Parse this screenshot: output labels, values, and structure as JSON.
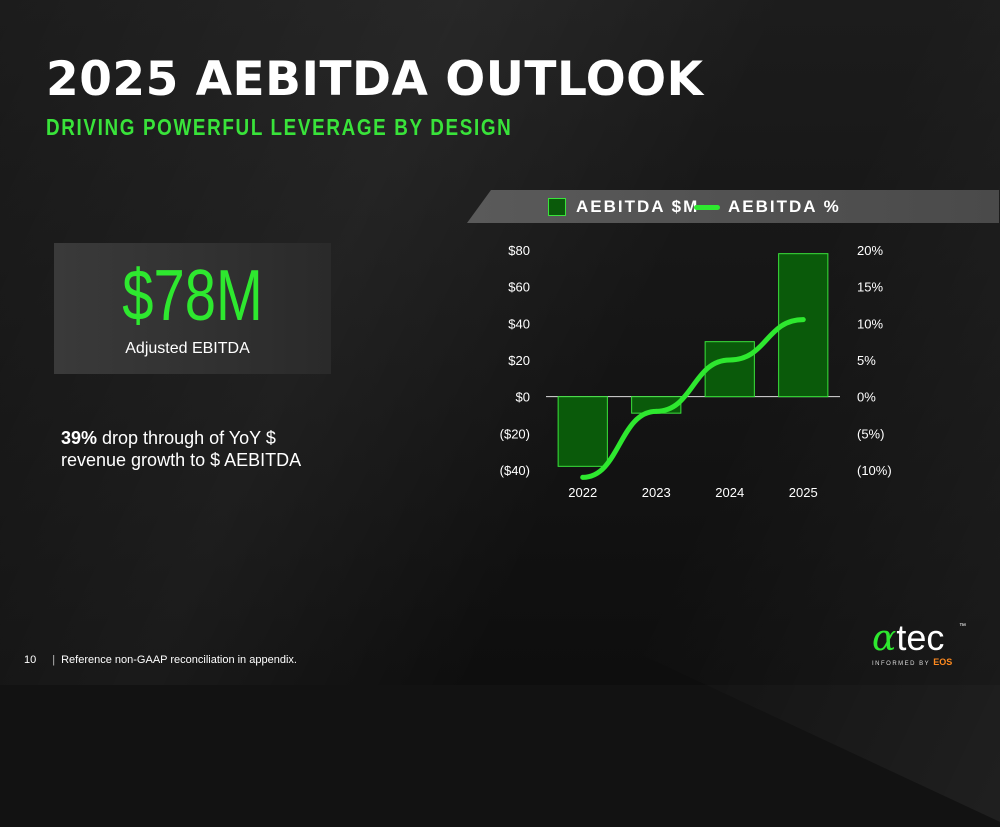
{
  "header": {
    "title": "2025 AEBITDA OUTLOOK",
    "subtitle": "DRIVING POWERFUL LEVERAGE BY DESIGN"
  },
  "kpi": {
    "value": "$78M",
    "label": "Adjusted EBITDA"
  },
  "note": {
    "bold": "39%",
    "text": " drop through of YoY $ revenue growth to $ AEBITDA"
  },
  "legend": {
    "bar_label": "AEBITDA $M",
    "line_label": "AEBITDA %"
  },
  "colors": {
    "accent": "#2ee82f",
    "bar_fill": "#0a5a0a",
    "bar_stroke": "#39e33a",
    "background": "#121212",
    "eos_orange": "#ff8a1f"
  },
  "chart_data": {
    "type": "bar",
    "categories": [
      "2022",
      "2023",
      "2024",
      "2025"
    ],
    "series": [
      {
        "name": "AEBITDA $M",
        "type": "bar",
        "axis": "left",
        "values": [
          -38,
          -9,
          30,
          78
        ]
      },
      {
        "name": "AEBITDA %",
        "type": "line",
        "axis": "right",
        "values": [
          -11,
          -2,
          5,
          10.5
        ]
      }
    ],
    "y_left": {
      "ticks": [
        "$80",
        "$60",
        "$40",
        "$20",
        "$0",
        "($20)",
        "($40)"
      ],
      "range": [
        -40,
        80
      ]
    },
    "y_right": {
      "ticks": [
        "20%",
        "15%",
        "10%",
        "5%",
        "0%",
        "(5%)",
        "(10%)"
      ],
      "range": [
        -10,
        20
      ]
    },
    "grid": false,
    "legend": "top"
  },
  "footer": {
    "page_number": "10",
    "text": "Reference non-GAAP reconciliation in appendix."
  },
  "logo": {
    "alpha": "α",
    "tec": "tec",
    "tm": "™",
    "sub": "INFORMED BY",
    "eos": "EOS"
  }
}
